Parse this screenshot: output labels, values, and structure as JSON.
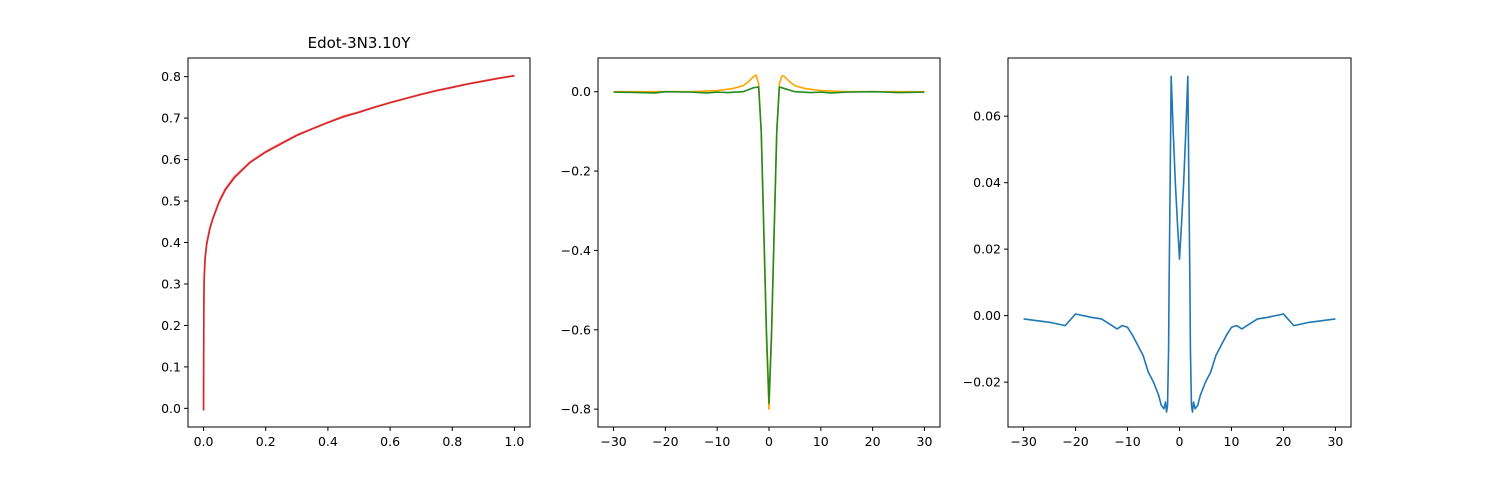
{
  "chart_data": [
    {
      "type": "line",
      "title": "Edot-3N3.10Y",
      "xlim": [
        -0.05,
        1.05
      ],
      "ylim": [
        -0.045,
        0.845
      ],
      "xticks": [
        0.0,
        0.2,
        0.4,
        0.6,
        0.8,
        1.0
      ],
      "xtick_labels": [
        "0.0",
        "0.2",
        "0.4",
        "0.6",
        "0.8",
        "1.0"
      ],
      "yticks": [
        0.0,
        0.1,
        0.2,
        0.3,
        0.4,
        0.5,
        0.6,
        0.7,
        0.8
      ],
      "ytick_labels": [
        "0.0",
        "0.1",
        "0.2",
        "0.3",
        "0.4",
        "0.5",
        "0.6",
        "0.7",
        "0.8"
      ],
      "grid": false,
      "series": [
        {
          "color": "#f08080",
          "x": [
            0.0,
            0.001,
            0.002,
            0.005,
            0.01,
            0.02,
            0.03,
            0.05,
            0.07,
            0.1,
            0.15,
            0.2,
            0.25,
            0.3,
            0.35,
            0.4,
            0.45,
            0.5,
            0.55,
            0.6,
            0.65,
            0.7,
            0.75,
            0.8,
            0.85,
            0.9,
            0.95,
            1.0
          ],
          "y": [
            -0.005,
            0.26,
            0.32,
            0.365,
            0.4,
            0.435,
            0.46,
            0.5,
            0.53,
            0.56,
            0.595,
            0.62,
            0.64,
            0.66,
            0.675,
            0.69,
            0.705,
            0.715,
            0.727,
            0.738,
            0.748,
            0.758,
            0.767,
            0.775,
            0.783,
            0.79,
            0.797,
            0.803
          ]
        },
        {
          "color": "#d62728",
          "x": [
            0.0,
            0.001,
            0.002,
            0.005,
            0.01,
            0.02,
            0.03,
            0.05,
            0.07,
            0.1,
            0.15,
            0.2,
            0.25,
            0.3,
            0.35,
            0.4,
            0.45,
            0.5,
            0.55,
            0.6,
            0.65,
            0.7,
            0.75,
            0.8,
            0.85,
            0.9,
            0.95,
            1.0
          ],
          "y": [
            -0.005,
            0.25,
            0.31,
            0.36,
            0.395,
            0.432,
            0.457,
            0.497,
            0.527,
            0.557,
            0.593,
            0.618,
            0.638,
            0.658,
            0.674,
            0.689,
            0.703,
            0.714,
            0.726,
            0.737,
            0.747,
            0.757,
            0.766,
            0.774,
            0.782,
            0.789,
            0.796,
            0.802
          ]
        }
      ]
    },
    {
      "type": "line",
      "title": "",
      "xlim": [
        -33,
        33
      ],
      "ylim": [
        -0.845,
        0.085
      ],
      "xticks": [
        -30,
        -20,
        -10,
        0,
        10,
        20,
        30
      ],
      "xtick_labels": [
        "−30",
        "−20",
        "−10",
        "0",
        "10",
        "20",
        "30"
      ],
      "yticks": [
        0.0,
        -0.2,
        -0.4,
        -0.6,
        -0.8
      ],
      "ytick_labels": [
        "0.0",
        "−0.2",
        "−0.4",
        "−0.6",
        "−0.8"
      ],
      "grid": false,
      "series": [
        {
          "color": "#ffa500",
          "x": [
            -30,
            -25,
            -20,
            -15,
            -10,
            -7,
            -5,
            -4,
            -3,
            -2.5,
            -2,
            -1.5,
            -1,
            -0.5,
            0,
            0.5,
            1,
            1.5,
            2,
            2.5,
            3,
            4,
            5,
            7,
            10,
            15,
            20,
            25,
            30
          ],
          "y": [
            0.0,
            0.0,
            0.0,
            0.0,
            0.003,
            0.008,
            0.015,
            0.025,
            0.038,
            0.042,
            0.02,
            -0.1,
            -0.35,
            -0.62,
            -0.8,
            -0.62,
            -0.35,
            -0.1,
            0.02,
            0.04,
            0.038,
            0.025,
            0.015,
            0.008,
            0.003,
            0.0,
            0.0,
            0.0,
            0.0
          ]
        },
        {
          "color": "#228b22",
          "x": [
            -30,
            -25,
            -22,
            -20,
            -15,
            -12,
            -10,
            -8,
            -5,
            -3,
            -2,
            -1.5,
            -1,
            -0.5,
            0,
            0.5,
            1,
            1.5,
            2,
            3,
            5,
            8,
            10,
            12,
            15,
            20,
            25,
            30
          ],
          "y": [
            -0.001,
            -0.002,
            -0.003,
            0.0,
            -0.001,
            -0.003,
            -0.001,
            -0.002,
            0.0,
            0.01,
            0.012,
            -0.1,
            -0.35,
            -0.6,
            -0.785,
            -0.6,
            -0.35,
            -0.1,
            0.012,
            0.008,
            0.0,
            -0.002,
            -0.001,
            -0.003,
            -0.001,
            0.0,
            -0.002,
            -0.001
          ]
        }
      ]
    },
    {
      "type": "line",
      "title": "",
      "xlim": [
        -33,
        33
      ],
      "ylim": [
        -0.0335,
        0.0775
      ],
      "xticks": [
        -30,
        -20,
        -10,
        0,
        10,
        20,
        30
      ],
      "xtick_labels": [
        "−30",
        "−20",
        "−10",
        "0",
        "10",
        "20",
        "30"
      ],
      "yticks": [
        0.06,
        0.04,
        0.02,
        0.0,
        -0.02
      ],
      "ytick_labels": [
        "0.06",
        "0.04",
        "0.02",
        "0.00",
        "−0.02"
      ],
      "grid": false,
      "series": [
        {
          "color": "#1f77b4",
          "x": [
            -30,
            -25,
            -22,
            -20,
            -17,
            -15,
            -13,
            -12,
            -11,
            -10,
            -9,
            -8,
            -7,
            -6,
            -5,
            -4,
            -3.5,
            -3,
            -2.7,
            -2.5,
            -2.3,
            -2.1,
            -2,
            -1.8,
            -1.6,
            -1.2,
            -0.8,
            -0.4,
            0,
            0.4,
            0.8,
            1.2,
            1.6,
            1.8,
            2,
            2.1,
            2.3,
            2.5,
            2.7,
            3,
            3.5,
            4,
            5,
            6,
            7,
            8,
            9,
            10,
            11,
            12,
            13,
            15,
            17,
            20,
            22,
            25,
            30
          ],
          "y": [
            -0.001,
            -0.002,
            -0.003,
            0.0005,
            -0.0005,
            -0.001,
            -0.003,
            -0.004,
            -0.003,
            -0.0035,
            -0.006,
            -0.009,
            -0.012,
            -0.017,
            -0.02,
            -0.024,
            -0.027,
            -0.028,
            -0.026,
            -0.029,
            -0.027,
            -0.01,
            0.01,
            0.04,
            0.072,
            0.055,
            0.04,
            0.028,
            0.017,
            0.028,
            0.04,
            0.055,
            0.072,
            0.04,
            0.01,
            -0.01,
            -0.027,
            -0.029,
            -0.026,
            -0.028,
            -0.027,
            -0.024,
            -0.02,
            -0.017,
            -0.012,
            -0.009,
            -0.006,
            -0.0035,
            -0.003,
            -0.004,
            -0.003,
            -0.001,
            -0.0005,
            0.0005,
            -0.003,
            -0.002,
            -0.001
          ]
        }
      ]
    }
  ]
}
